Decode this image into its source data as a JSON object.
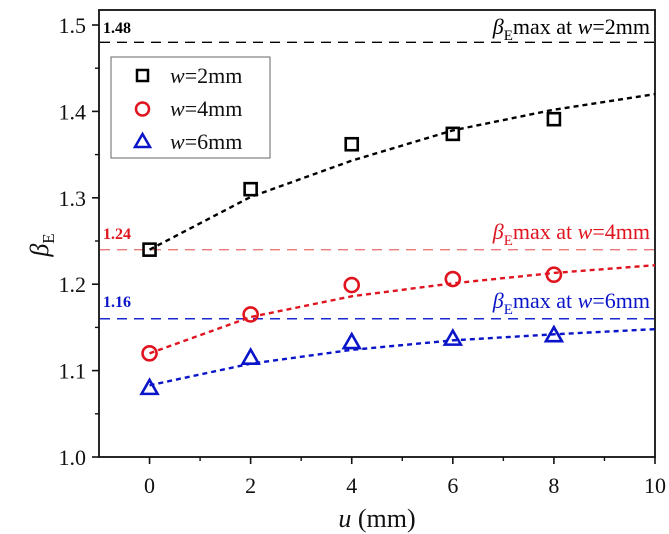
{
  "chart_data": {
    "type": "scatter",
    "title": "",
    "xlabel": "u (mm)",
    "xlabel_var": "u",
    "xlabel_unit": " (mm)",
    "ylabel": "βE",
    "ylabel_main": "β",
    "ylabel_sub": "E",
    "xlim": [
      -1,
      10
    ],
    "ylim": [
      1.0,
      1.5
    ],
    "x_ticks": [
      0,
      2,
      4,
      6,
      8,
      10
    ],
    "x_tick_labels": [
      "0",
      "2",
      "4",
      "6",
      "8",
      "10"
    ],
    "y_ticks": [
      1.0,
      1.1,
      1.2,
      1.3,
      1.4,
      1.5
    ],
    "y_tick_labels": [
      "1.0",
      "1.1",
      "1.2",
      "1.3",
      "1.4",
      "1.5"
    ],
    "grid": false,
    "legend_position": "top-left",
    "series": [
      {
        "name": "w=2mm",
        "var": "w",
        "rest": "=2mm",
        "marker": "square",
        "color": "#000000",
        "x": [
          0,
          2,
          4,
          6,
          8
        ],
        "y": [
          1.24,
          1.31,
          1.362,
          1.374,
          1.391
        ],
        "fit": {
          "x": [
            0,
            2,
            4,
            6,
            8,
            10
          ],
          "y": [
            1.24,
            1.301,
            1.343,
            1.378,
            1.402,
            1.42
          ]
        }
      },
      {
        "name": "w=4mm",
        "var": "w",
        "rest": "=4mm",
        "marker": "circle",
        "color": "#e0141e",
        "x": [
          0,
          2,
          4,
          6,
          8
        ],
        "y": [
          1.12,
          1.165,
          1.199,
          1.206,
          1.211
        ],
        "fit": {
          "x": [
            0,
            2,
            4,
            6,
            8,
            10
          ],
          "y": [
            1.12,
            1.162,
            1.186,
            1.201,
            1.213,
            1.222
          ]
        }
      },
      {
        "name": "w=6mm",
        "var": "w",
        "rest": "=6mm",
        "marker": "triangle",
        "color": "#0a14c8",
        "x": [
          0,
          2,
          4,
          6,
          8
        ],
        "y": [
          1.08,
          1.115,
          1.133,
          1.137,
          1.141
        ],
        "fit": {
          "x": [
            0,
            2,
            4,
            6,
            8,
            10
          ],
          "y": [
            1.083,
            1.108,
            1.124,
            1.135,
            1.142,
            1.148
          ]
        }
      }
    ],
    "reference_lines": [
      {
        "y": 1.48,
        "value_label": "1.48",
        "text_main": "β",
        "text_sub": "E",
        "text_rest": "max at ",
        "text_var": "w",
        "text_end": "=2mm",
        "color": "#000000",
        "label_color": "#000000"
      },
      {
        "y": 1.24,
        "value_label": "1.24",
        "text_main": "β",
        "text_sub": "E",
        "text_rest": "max at ",
        "text_var": "w",
        "text_end": "=4mm",
        "color": "#e87a7a",
        "label_color": "#e0141e"
      },
      {
        "y": 1.16,
        "value_label": "1.16",
        "text_main": "β",
        "text_sub": "E",
        "text_rest": "max at ",
        "text_var": "w",
        "text_end": "=6mm",
        "color": "#1a2ad0",
        "label_color": "#0a14c8"
      }
    ]
  }
}
